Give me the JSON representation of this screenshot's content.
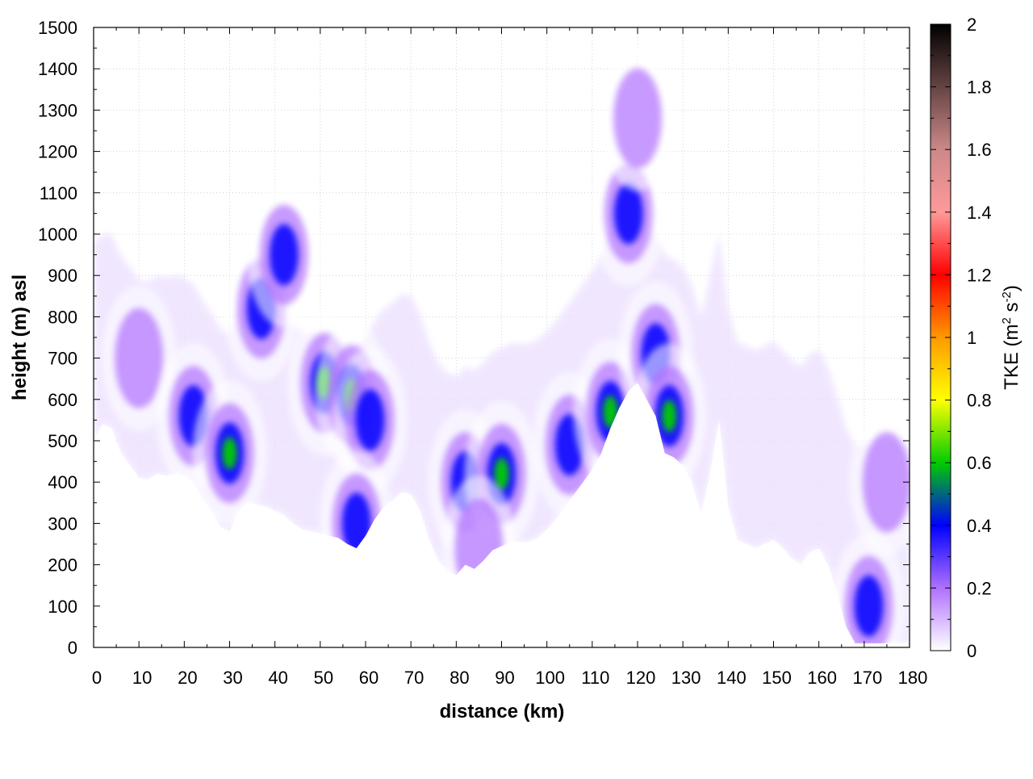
{
  "chart_data": {
    "type": "heatmap",
    "subtype": "vertical cross-section (distance vs height)",
    "xlabel": "distance (km)",
    "ylabel": "height (m) asl",
    "xlim": [
      0,
      180
    ],
    "ylim": [
      0,
      1500
    ],
    "x_ticks": [
      "0",
      "10",
      "20",
      "30",
      "40",
      "50",
      "60",
      "70",
      "80",
      "90",
      "100",
      "110",
      "120",
      "130",
      "140",
      "150",
      "160",
      "170",
      "180"
    ],
    "y_ticks": [
      "0",
      "100",
      "200",
      "300",
      "400",
      "500",
      "600",
      "700",
      "800",
      "900",
      "1000",
      "1100",
      "1200",
      "1300",
      "1400",
      "1500"
    ],
    "grid": true,
    "colorbar": {
      "label_main": "TKE (m",
      "label_sup1": "2",
      "label_mid": " s",
      "label_sup2": "-2",
      "label_end": ")",
      "range": [
        0,
        2
      ],
      "ticks": [
        "0",
        "0.2",
        "0.4",
        "0.6",
        "0.8",
        "1",
        "1.2",
        "1.4",
        "1.6",
        "1.8",
        "2"
      ],
      "stops": [
        {
          "value": 0.0,
          "color": "#ffffff"
        },
        {
          "value": 0.2,
          "color": "#b070ff"
        },
        {
          "value": 0.4,
          "color": "#0000ff"
        },
        {
          "value": 0.6,
          "color": "#00cc00"
        },
        {
          "value": 0.8,
          "color": "#ffff00"
        },
        {
          "value": 1.0,
          "color": "#ff9900"
        },
        {
          "value": 1.2,
          "color": "#ff0000"
        },
        {
          "value": 1.4,
          "color": "#ff9999"
        },
        {
          "value": 1.6,
          "color": "#cc8888"
        },
        {
          "value": 1.8,
          "color": "#664444"
        },
        {
          "value": 2.0,
          "color": "#000000"
        }
      ]
    },
    "terrain_profile": {
      "x": [
        0,
        2,
        4,
        6,
        8,
        10,
        12,
        14,
        16,
        18,
        20,
        22,
        24,
        26,
        28,
        30,
        32,
        34,
        36,
        38,
        40,
        42,
        44,
        46,
        48,
        50,
        52,
        54,
        56,
        58,
        60,
        62,
        64,
        66,
        68,
        70,
        72,
        74,
        76,
        78,
        80,
        82,
        84,
        86,
        88,
        90,
        92,
        94,
        96,
        98,
        100,
        102,
        104,
        106,
        108,
        110,
        112,
        114,
        116,
        118,
        120,
        122,
        124,
        126,
        128,
        130,
        132,
        134,
        136,
        138,
        140,
        142,
        144,
        146,
        148,
        150,
        152,
        154,
        156,
        158,
        160,
        162,
        164,
        166,
        168,
        170,
        172,
        174,
        176,
        178,
        180
      ],
      "height": [
        500,
        540,
        530,
        470,
        440,
        410,
        405,
        420,
        415,
        420,
        415,
        400,
        360,
        330,
        290,
        280,
        330,
        350,
        345,
        340,
        330,
        320,
        300,
        285,
        280,
        275,
        270,
        265,
        250,
        240,
        270,
        310,
        340,
        355,
        375,
        370,
        330,
        260,
        210,
        185,
        175,
        200,
        190,
        210,
        235,
        245,
        255,
        255,
        255,
        265,
        285,
        310,
        340,
        370,
        400,
        430,
        470,
        530,
        580,
        620,
        640,
        600,
        560,
        470,
        460,
        440,
        400,
        320,
        420,
        550,
        340,
        260,
        250,
        240,
        250,
        260,
        240,
        215,
        200,
        230,
        240,
        200,
        130,
        50,
        10,
        10,
        10,
        10,
        10,
        10,
        10
      ]
    },
    "tke_maxima": [
      {
        "x": 10,
        "y": 700,
        "tke": 0.25
      },
      {
        "x": 22,
        "y": 560,
        "tke": 0.42
      },
      {
        "x": 30,
        "y": 470,
        "tke": 0.62
      },
      {
        "x": 37,
        "y": 820,
        "tke": 0.45
      },
      {
        "x": 42,
        "y": 950,
        "tke": 0.42
      },
      {
        "x": 51,
        "y": 640,
        "tke": 0.6
      },
      {
        "x": 57,
        "y": 610,
        "tke": 0.66
      },
      {
        "x": 61,
        "y": 550,
        "tke": 0.55
      },
      {
        "x": 58,
        "y": 300,
        "tke": 0.5
      },
      {
        "x": 82,
        "y": 400,
        "tke": 0.4
      },
      {
        "x": 90,
        "y": 420,
        "tke": 0.6
      },
      {
        "x": 85,
        "y": 240,
        "tke": 0.3
      },
      {
        "x": 105,
        "y": 490,
        "tke": 0.4
      },
      {
        "x": 114,
        "y": 570,
        "tke": 0.78
      },
      {
        "x": 118,
        "y": 1050,
        "tke": 0.45
      },
      {
        "x": 120,
        "y": 1280,
        "tke": 0.35
      },
      {
        "x": 124,
        "y": 710,
        "tke": 0.42
      },
      {
        "x": 127,
        "y": 560,
        "tke": 0.6
      },
      {
        "x": 171,
        "y": 100,
        "tke": 0.45
      },
      {
        "x": 175,
        "y": 400,
        "tke": 0.3
      }
    ]
  }
}
